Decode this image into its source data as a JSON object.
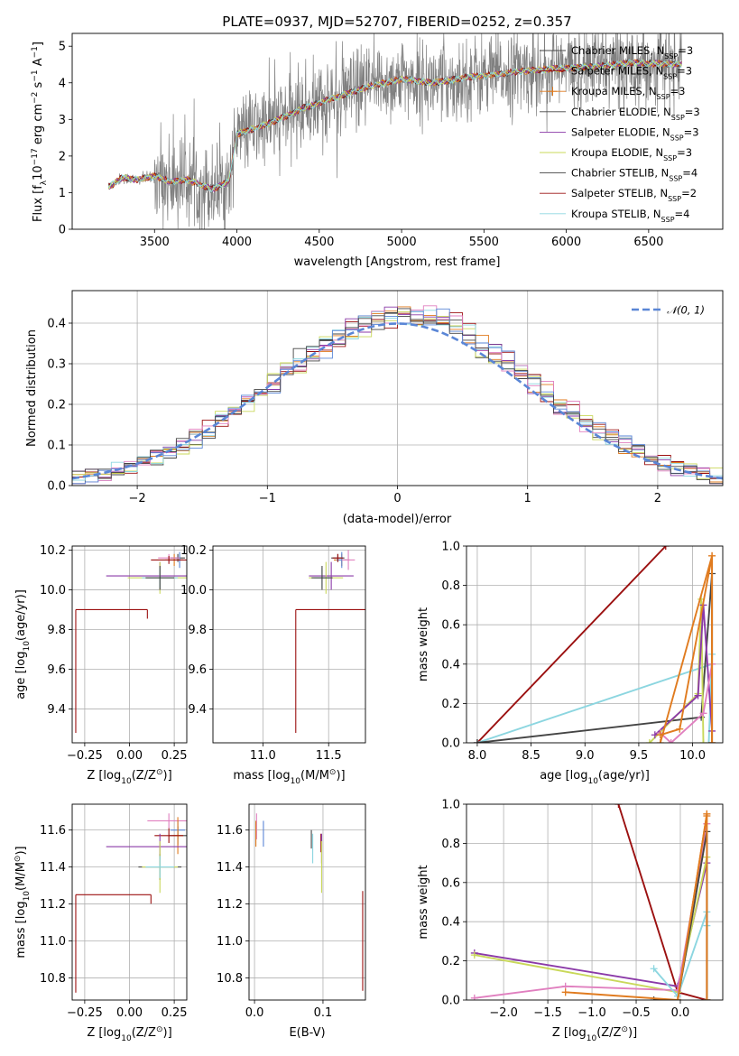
{
  "colors": {
    "chabrier": "#444444",
    "salpeter": "#9b1010",
    "kroupa": "#e07b1f",
    "purple": "#8b3aa8",
    "yellowgreen": "#c9d85a",
    "cyan": "#8cd6e0",
    "pink": "#e07fbf",
    "blue": "#5a86d6",
    "gray": "#808080",
    "grid": "#b0b0b0"
  },
  "chart_data": [
    {
      "id": "spectrum",
      "type": "line",
      "title": "PLATE=0937, MJD=52707, FIBERID=0252, z=0.357",
      "xlabel": "wavelength [Angstrom, rest frame]",
      "ylabel": "Flux [f",
      "ylabel_parts": [
        "Flux [f",
        "λ",
        "10",
        "−17",
        " erg cm",
        "−2",
        " s",
        "−1",
        " A",
        "−1",
        "]"
      ],
      "xlim": [
        3000,
        6950
      ],
      "ylim": [
        0,
        5.35
      ],
      "xticks": [
        3500,
        4000,
        4500,
        5000,
        5500,
        6000,
        6500
      ],
      "yticks": [
        0,
        1,
        2,
        3,
        4,
        5
      ],
      "grid": false,
      "legend_position": "top-right",
      "legend": [
        {
          "label": "Chabrier MILES, N",
          "n": "3",
          "color": "#444444"
        },
        {
          "label": "Salpeter MILES, N",
          "n": "3",
          "color": "#9b1010"
        },
        {
          "label": "Kroupa MILES, N",
          "n": "3",
          "color": "#e07b1f",
          "marker": true
        },
        {
          "label": "Chabrier ELODIE, N",
          "n": "3",
          "color": "#444444"
        },
        {
          "label": "Salpeter ELODIE, N",
          "n": "3",
          "color": "#8b3aa8"
        },
        {
          "label": "Kroupa ELODIE, N",
          "n": "3",
          "color": "#c9d85a"
        },
        {
          "label": "Chabrier STELIB, N",
          "n": "4",
          "color": "#444444"
        },
        {
          "label": "Salpeter STELIB, N",
          "n": "2",
          "color": "#9b1010"
        },
        {
          "label": "Kroupa STELIB, N",
          "n": "4",
          "color": "#8cd6e0"
        }
      ],
      "legend_sub": "SSP",
      "data_start": 3220,
      "data_end": 6700,
      "continuum_knots": [
        [
          3220,
          1.15
        ],
        [
          3300,
          1.4
        ],
        [
          3400,
          1.35
        ],
        [
          3500,
          1.45
        ],
        [
          3600,
          1.3
        ],
        [
          3700,
          1.35
        ],
        [
          3850,
          1.1
        ],
        [
          3950,
          1.3
        ],
        [
          4000,
          2.6
        ],
        [
          4200,
          2.9
        ],
        [
          4400,
          3.3
        ],
        [
          4600,
          3.6
        ],
        [
          4800,
          3.9
        ],
        [
          5000,
          4.1
        ],
        [
          5200,
          4.0
        ],
        [
          5400,
          4.15
        ],
        [
          5600,
          4.25
        ],
        [
          5800,
          4.35
        ],
        [
          6000,
          4.4
        ],
        [
          6200,
          4.45
        ],
        [
          6400,
          4.55
        ],
        [
          6700,
          4.5
        ]
      ]
    },
    {
      "id": "residuals",
      "type": "histogram",
      "xlabel": "(data-model)/error",
      "ylabel": "Normed distribution",
      "xlim": [
        -2.5,
        2.5
      ],
      "ylim": [
        0,
        0.48
      ],
      "xticks": [
        -2,
        -1,
        0,
        1,
        2
      ],
      "xtick_labels": [
        "−2",
        "−1",
        "0",
        "1",
        "2"
      ],
      "yticks": [
        0.0,
        0.1,
        0.2,
        0.3,
        0.4
      ],
      "ytick_labels": [
        "0.0",
        "0.1",
        "0.2",
        "0.3",
        "0.4"
      ],
      "grid": true,
      "legend_position": "top-right",
      "legend": [
        {
          "label": "𝒩(0, 1)",
          "color": "#5a86d6",
          "style": "dashed"
        }
      ],
      "bin_width": 0.1,
      "series_colors": [
        "#444444",
        "#9b1010",
        "#e07b1f",
        "#8b3aa8",
        "#c9d85a",
        "#8cd6e0",
        "#e07fbf",
        "#5a86d6",
        "#444444"
      ]
    },
    {
      "id": "age-vs-Z",
      "type": "scatter",
      "xlabel": "Z [log",
      "xlabel_parts": [
        "Z [log",
        "10",
        "(Z/Z",
        "⊙",
        ")]"
      ],
      "ylabel_parts": [
        "age  [log",
        "10",
        "(age/yr)]"
      ],
      "xlim": [
        -0.32,
        0.32
      ],
      "ylim": [
        9.23,
        10.22
      ],
      "xticks": [
        -0.25,
        0.0,
        0.25
      ],
      "xtick_labels": [
        "−0.25",
        "0.00",
        "0.25"
      ],
      "yticks": [
        9.4,
        9.6,
        9.8,
        10.0,
        10.2
      ],
      "ytick_labels": [
        "9.4",
        "9.6",
        "9.8",
        "10.0",
        "10.2"
      ],
      "grid": true,
      "points": [
        {
          "x": 0.27,
          "y": 10.16,
          "xerr": 0.04,
          "yerr": 0.02,
          "color": "#444444"
        },
        {
          "x": 0.25,
          "y": 10.15,
          "xerr": 0.05,
          "yerr": 0.03,
          "color": "#e07b1f"
        },
        {
          "x": 0.28,
          "y": 10.15,
          "xerr": 0.02,
          "yerr": 0.04,
          "color": "#5a86d6"
        },
        {
          "x": 0.22,
          "y": 10.16,
          "xerr": 0.06,
          "yerr": 0.02,
          "color": "#e07fbf"
        },
        {
          "x": 0.17,
          "y": 10.07,
          "xerr": 0.3,
          "yerr": 0.07,
          "color": "#8b3aa8"
        },
        {
          "x": 0.17,
          "y": 10.06,
          "xerr": 0.18,
          "yerr": 0.08,
          "color": "#c9d85a"
        },
        {
          "x": 0.17,
          "y": 10.06,
          "xerr": 0.1,
          "yerr": 0.05,
          "color": "#8cd6e0"
        },
        {
          "x": 0.17,
          "y": 10.06,
          "xerr": 0.08,
          "yerr": 0.06,
          "color": "#444444"
        },
        {
          "x": 0.22,
          "y": 10.15,
          "xerr": 0.1,
          "yerr": 0.02,
          "color": "#9b1010"
        },
        {
          "x": -0.3,
          "y": 9.9,
          "xerr": 0.4,
          "yerr": 0.62,
          "color": "#9b1010",
          "one_sided": true
        }
      ]
    },
    {
      "id": "age-vs-mass",
      "type": "scatter",
      "xlabel_parts": [
        "mass [log",
        "10",
        "(M/M",
        "⊙",
        ")]"
      ],
      "xlim": [
        10.62,
        11.78
      ],
      "ylim": [
        9.23,
        10.22
      ],
      "xticks": [
        11.0,
        11.5
      ],
      "xtick_labels": [
        "11.0",
        "11.5"
      ],
      "yticks": [
        9.4,
        9.6,
        9.8,
        10.0,
        10.2
      ],
      "ytick_labels": [
        "9.4",
        "9.6",
        "9.8",
        "10.0",
        "10.2"
      ],
      "grid": true,
      "points": [
        {
          "x": 11.57,
          "y": 10.16,
          "xerr": 0.05,
          "yerr": 0.02,
          "color": "#444444"
        },
        {
          "x": 11.6,
          "y": 10.15,
          "xerr": 0.06,
          "yerr": 0.03,
          "color": "#e07b1f"
        },
        {
          "x": 11.6,
          "y": 10.15,
          "xerr": 0.04,
          "yerr": 0.04,
          "color": "#5a86d6"
        },
        {
          "x": 11.65,
          "y": 10.15,
          "xerr": 0.05,
          "yerr": 0.05,
          "color": "#e07fbf"
        },
        {
          "x": 11.52,
          "y": 10.07,
          "xerr": 0.17,
          "yerr": 0.07,
          "color": "#8b3aa8"
        },
        {
          "x": 11.48,
          "y": 10.06,
          "xerr": 0.13,
          "yerr": 0.08,
          "color": "#c9d85a"
        },
        {
          "x": 11.45,
          "y": 10.06,
          "xerr": 0.06,
          "yerr": 0.05,
          "color": "#8cd6e0"
        },
        {
          "x": 11.45,
          "y": 10.06,
          "xerr": 0.08,
          "yerr": 0.06,
          "color": "#444444"
        },
        {
          "x": 11.57,
          "y": 10.16,
          "xerr": 0.04,
          "yerr": 0.02,
          "color": "#9b1010"
        },
        {
          "x": 11.25,
          "y": 9.9,
          "xerr": 0.55,
          "yerr": 0.62,
          "color": "#9b1010",
          "one_sided": true
        }
      ]
    },
    {
      "id": "weight-vs-age",
      "type": "line",
      "xlabel_parts": [
        "age  [log",
        "10",
        "(age/yr)]"
      ],
      "ylabel": "mass weight",
      "xlim": [
        7.9,
        10.28
      ],
      "ylim": [
        0,
        1.0
      ],
      "xticks": [
        8.0,
        8.5,
        9.0,
        9.5,
        10.0
      ],
      "xtick_labels": [
        "8.0",
        "8.5",
        "9.0",
        "9.5",
        "10.0"
      ],
      "yticks": [
        0.0,
        0.2,
        0.4,
        0.6,
        0.8,
        1.0
      ],
      "ytick_labels": [
        "0.0",
        "0.2",
        "0.4",
        "0.6",
        "0.8",
        "1.0"
      ],
      "grid": true,
      "series": [
        {
          "color": "#9b1010",
          "x": [
            8.0,
            9.75
          ],
          "y": [
            0.0,
            1.0
          ]
        },
        {
          "color": "#8cd6e0",
          "x": [
            8.0,
            10.18,
            10.18,
            10.15
          ],
          "y": [
            0.0,
            0.4,
            0.45,
            0.0
          ]
        },
        {
          "color": "#444444",
          "x": [
            8.0,
            10.08,
            10.18,
            10.18
          ],
          "y": [
            0.0,
            0.13,
            0.86,
            0.0
          ]
        },
        {
          "color": "#c9d85a",
          "x": [
            9.6,
            10.05,
            10.08,
            10.1
          ],
          "y": [
            0.0,
            0.25,
            0.73,
            0.0
          ]
        },
        {
          "color": "#8b3aa8",
          "x": [
            9.65,
            10.05,
            10.1,
            10.18
          ],
          "y": [
            0.04,
            0.24,
            0.7,
            0.06
          ]
        },
        {
          "color": "#e07fbf",
          "x": [
            9.7,
            9.8,
            10.1,
            10.18
          ],
          "y": [
            0.05,
            0.0,
            0.15,
            0.4
          ]
        },
        {
          "color": "#e07b1f",
          "x": [
            9.7,
            10.18,
            10.18
          ],
          "y": [
            0.0,
            0.95,
            0.0
          ]
        },
        {
          "color": "#e07b1f",
          "x": [
            9.7,
            9.88,
            10.18,
            10.18
          ],
          "y": [
            0.04,
            0.07,
            0.95,
            0.0
          ]
        }
      ]
    },
    {
      "id": "mass-vs-Z",
      "type": "scatter",
      "xlabel_parts": [
        "Z [log",
        "10",
        "(Z/Z",
        "⊙",
        ")]"
      ],
      "ylabel_parts": [
        "mass [log",
        "10",
        "(M/M",
        "⊙",
        ")]"
      ],
      "xlim": [
        -0.32,
        0.32
      ],
      "ylim": [
        10.68,
        11.74
      ],
      "xticks": [
        -0.25,
        0.0,
        0.25
      ],
      "xtick_labels": [
        "−0.25",
        "0.00",
        "0.25"
      ],
      "yticks": [
        10.8,
        11.0,
        11.2,
        11.4,
        11.6
      ],
      "ytick_labels": [
        "10.8",
        "11.0",
        "11.2",
        "11.4",
        "11.6"
      ],
      "grid": true,
      "points": [
        {
          "x": 0.22,
          "y": 11.65,
          "xerr": 0.12,
          "yerr": 0.04,
          "color": "#e07fbf"
        },
        {
          "x": 0.27,
          "y": 11.6,
          "xerr": 0.04,
          "yerr": 0.05,
          "color": "#5a86d6"
        },
        {
          "x": 0.27,
          "y": 11.57,
          "xerr": 0.05,
          "yerr": 0.05,
          "color": "#444444"
        },
        {
          "x": 0.27,
          "y": 11.57,
          "xerr": 0.03,
          "yerr": 0.1,
          "color": "#e07b1f"
        },
        {
          "x": 0.22,
          "y": 11.57,
          "xerr": 0.08,
          "yerr": 0.04,
          "color": "#9b1010"
        },
        {
          "x": 0.17,
          "y": 11.51,
          "xerr": 0.3,
          "yerr": 0.07,
          "color": "#8b3aa8"
        },
        {
          "x": 0.17,
          "y": 11.4,
          "xerr": 0.12,
          "yerr": 0.07,
          "color": "#444444"
        },
        {
          "x": 0.17,
          "y": 11.4,
          "xerr": 0.1,
          "yerr": 0.14,
          "color": "#c9d85a"
        },
        {
          "x": 0.17,
          "y": 11.4,
          "xerr": 0.08,
          "yerr": 0.06,
          "color": "#8cd6e0"
        },
        {
          "x": -0.3,
          "y": 11.25,
          "xerr": 0.42,
          "yerr": 0.53,
          "color": "#9b1010",
          "one_sided": true
        }
      ]
    },
    {
      "id": "mass-vs-EBV",
      "type": "scatter",
      "xlabel": "E(B-V)",
      "xlim": [
        -0.008,
        0.162
      ],
      "ylim": [
        10.68,
        11.74
      ],
      "xticks": [
        0.0,
        0.1
      ],
      "xtick_labels": [
        "0.0",
        "0.1"
      ],
      "yticks": [
        10.8,
        11.0,
        11.2,
        11.4,
        11.6
      ],
      "ytick_labels": [
        "10.8",
        "11.0",
        "11.2",
        "11.4",
        "11.6"
      ],
      "grid": true,
      "points": [
        {
          "x": 0.003,
          "y": 11.62,
          "xerr": 0.0,
          "yerr": 0.07,
          "color": "#e07fbf"
        },
        {
          "x": 0.002,
          "y": 11.58,
          "xerr": 0.0,
          "yerr": 0.07,
          "color": "#e07b1f"
        },
        {
          "x": 0.013,
          "y": 11.58,
          "xerr": 0.0,
          "yerr": 0.07,
          "color": "#5a86d6"
        },
        {
          "x": 0.083,
          "y": 11.55,
          "xerr": 0.0,
          "yerr": 0.05,
          "color": "#444444"
        },
        {
          "x": 0.085,
          "y": 11.5,
          "xerr": 0.0,
          "yerr": 0.08,
          "color": "#8cd6e0"
        },
        {
          "x": 0.097,
          "y": 11.53,
          "xerr": 0.0,
          "yerr": 0.05,
          "color": "#9b1010"
        },
        {
          "x": 0.098,
          "y": 11.5,
          "xerr": 0.0,
          "yerr": 0.08,
          "color": "#8b3aa8"
        },
        {
          "x": 0.098,
          "y": 11.4,
          "xerr": 0.0,
          "yerr": 0.14,
          "color": "#c9d85a"
        },
        {
          "x": 0.158,
          "y": 11.0,
          "xerr": 0.0,
          "yerr": 0.27,
          "color": "#9b1010"
        }
      ]
    },
    {
      "id": "weight-vs-Z",
      "type": "line",
      "xlabel_parts": [
        "Z [log",
        "10",
        "(Z/Z",
        "⊙",
        ")]"
      ],
      "ylabel": "mass weight",
      "xlim": [
        -2.42,
        0.48
      ],
      "ylim": [
        0,
        1.0
      ],
      "xticks": [
        -2.0,
        -1.5,
        -1.0,
        -0.5,
        0.0
      ],
      "xtick_labels": [
        "−2.0",
        "−1.5",
        "−1.0",
        "−0.5",
        "0.0"
      ],
      "yticks": [
        0.0,
        0.2,
        0.4,
        0.6,
        0.8,
        1.0
      ],
      "ytick_labels": [
        "0.0",
        "0.2",
        "0.4",
        "0.6",
        "0.8",
        "1.0"
      ],
      "grid": true,
      "series": [
        {
          "color": "#9b1010",
          "x": [
            -0.7,
            -0.03,
            0.3
          ],
          "y": [
            1.0,
            0.04,
            0.0
          ]
        },
        {
          "color": "#8b3aa8",
          "x": [
            -2.33,
            -0.03,
            0.3,
            0.3
          ],
          "y": [
            0.24,
            0.07,
            0.7,
            0.0
          ]
        },
        {
          "color": "#c9d85a",
          "x": [
            -2.33,
            -0.03,
            0.3,
            0.3
          ],
          "y": [
            0.23,
            0.04,
            0.73,
            0.0
          ]
        },
        {
          "color": "#e07fbf",
          "x": [
            -2.33,
            -1.3,
            -0.03,
            0.3
          ],
          "y": [
            0.01,
            0.07,
            0.05,
            0.9
          ]
        },
        {
          "color": "#8cd6e0",
          "x": [
            -0.3,
            -0.03,
            0.3,
            0.3
          ],
          "y": [
            0.16,
            0.02,
            0.45,
            0.38
          ]
        },
        {
          "color": "#444444",
          "x": [
            -0.3,
            -0.03,
            0.3,
            0.3
          ],
          "y": [
            0.0,
            0.0,
            0.86,
            0.0
          ]
        },
        {
          "color": "#e07b1f",
          "x": [
            -1.3,
            -0.03,
            0.3,
            0.3
          ],
          "y": [
            0.04,
            0.0,
            0.95,
            0.0
          ]
        },
        {
          "color": "#e07b1f",
          "x": [
            -0.03,
            0.3,
            0.3
          ],
          "y": [
            0.0,
            0.95,
            0.94
          ]
        }
      ]
    }
  ]
}
